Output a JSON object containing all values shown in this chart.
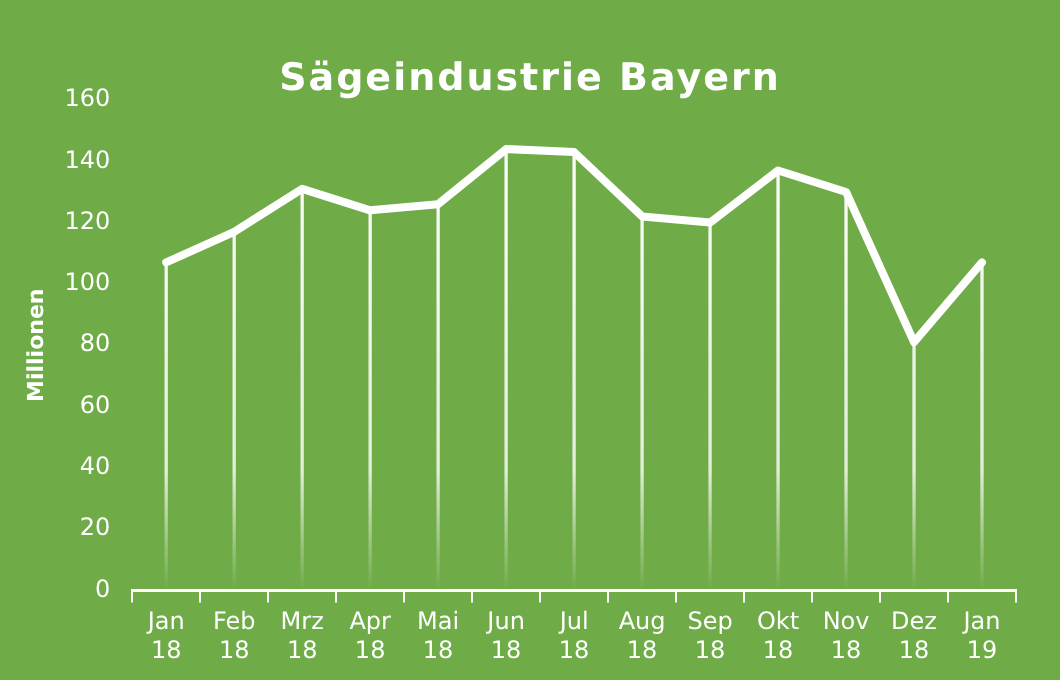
{
  "chart_data": {
    "type": "line",
    "title": "Sägeindustrie Bayern",
    "ylabel": "Millionen",
    "categories": [
      "Jan 18",
      "Feb 18",
      "Mrz 18",
      "Apr 18",
      "Mai 18",
      "Jun 18",
      "Jul 18",
      "Aug 18",
      "Sep 18",
      "Okt 18",
      "Nov 18",
      "Dez 18",
      "Jan 19"
    ],
    "series": [
      {
        "color": "#ffffff",
        "values": [
          107,
          117,
          131,
          124,
          126,
          144,
          143,
          122,
          120,
          137,
          130,
          81,
          107
        ]
      },
      {
        "type": "bar",
        "color": "#ffffff",
        "values": [
          107,
          117,
          131,
          124,
          126,
          144,
          143,
          122,
          120,
          137,
          130,
          81,
          107
        ]
      }
    ],
    "ylim": [
      0,
      160
    ],
    "yticks": [
      0,
      20,
      40,
      60,
      80,
      100,
      120,
      140,
      160
    ],
    "grid": false,
    "legend": false,
    "marker": "none",
    "line_style": "solid"
  }
}
